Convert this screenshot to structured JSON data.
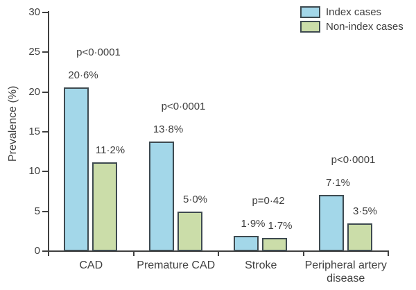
{
  "chart_data": {
    "type": "bar",
    "title": "",
    "subtitle": "",
    "xlabel": "",
    "ylabel": "Prevalence (%)",
    "ylim": [
      0,
      30
    ],
    "yticks": [
      0,
      5,
      10,
      15,
      20,
      25,
      30
    ],
    "grid": false,
    "legend_position": "top-right",
    "categories": [
      "CAD",
      "Premature CAD",
      "Stroke",
      "Peripheral artery disease"
    ],
    "series": [
      {
        "name": "Index cases",
        "color": "#a3d7e9",
        "values": [
          20.6,
          13.8,
          1.9,
          7.1
        ],
        "value_labels": [
          "20·6%",
          "13·8%",
          "1·9%",
          "7·1%"
        ]
      },
      {
        "name": "Non-index cases",
        "color": "#cbdda9",
        "values": [
          11.2,
          5.0,
          1.7,
          3.5
        ],
        "value_labels": [
          "11·2%",
          "5·0%",
          "1·7%",
          "3·5%"
        ]
      }
    ],
    "p_values": [
      "p<0·0001",
      "p<0·0001",
      "p=0·42",
      "p<0·0001"
    ],
    "colors": {
      "bar_border": "#3e4a50",
      "axis": "#404040",
      "text": "#3f3f3f",
      "background": "#ffffff"
    }
  }
}
